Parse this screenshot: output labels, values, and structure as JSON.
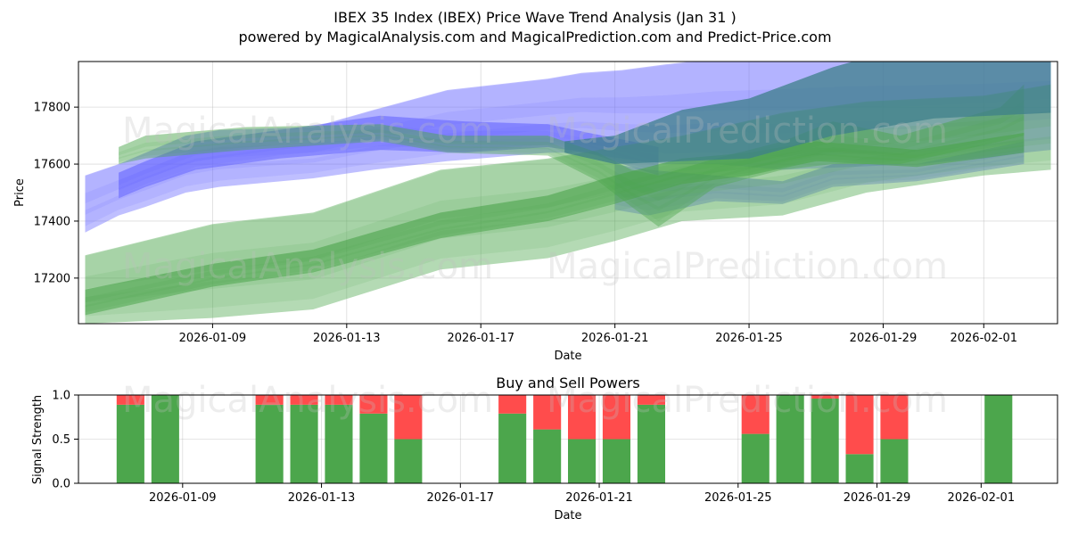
{
  "title": "IBEX 35 Index (IBEX) Price Wave Trend Analysis (Jan 31 )",
  "subtitle": "powered by MagicalAnalysis.com and MagicalPrediction.com and Predict-Price.com",
  "watermarks": [
    "MagicalAnalysis.com",
    "MagicalPrediction.com"
  ],
  "colors": {
    "blue_band": "#6666ff",
    "green_band": "#4ca64c",
    "teal_band": "#3d7f8a",
    "buy": "#4ca64c",
    "sell": "#ff4c4c"
  },
  "chart_data": [
    {
      "type": "area",
      "title": "",
      "xlabel": "Date",
      "ylabel": "Price",
      "x_tick_labels": [
        "2026-01-09",
        "2026-01-13",
        "2026-01-17",
        "2026-01-21",
        "2026-01-25",
        "2026-01-29",
        "2026-02-01"
      ],
      "x_tick_days": [
        9,
        13,
        17,
        21,
        25,
        29,
        32
      ],
      "xlim_days": [
        5.0,
        34.2
      ],
      "y_tick_labels": [
        "17200",
        "17400",
        "17600",
        "17800"
      ],
      "ylim": [
        17040,
        17960
      ],
      "series": [
        {
          "name": "blue band upper",
          "color": "blue",
          "x": [
            5.2,
            6.2,
            7.0,
            8.2,
            9.2,
            12.0,
            13.8,
            16.0,
            19.0,
            20.0,
            21.2,
            22.5,
            24.0,
            26.0,
            28.0,
            30.0,
            32.0,
            33.2,
            34.0
          ],
          "upper": [
            17560,
            17600,
            17640,
            17700,
            17720,
            17730,
            17790,
            17860,
            17900,
            17920,
            17930,
            17950,
            17970,
            17990,
            18000,
            18000,
            18000,
            18000,
            18000
          ],
          "lower": [
            17360,
            17420,
            17450,
            17500,
            17520,
            17550,
            17580,
            17610,
            17640,
            17640,
            17620,
            17600,
            17600,
            17580,
            17590,
            17600,
            17620,
            17640,
            17650
          ]
        },
        {
          "name": "blue band core",
          "color": "blue",
          "x": [
            6.2,
            7.0,
            8.5,
            11.0,
            14.0,
            16.5,
            19.0,
            20.2,
            21.5,
            22.3
          ],
          "upper": [
            17570,
            17610,
            17680,
            17720,
            17770,
            17750,
            17740,
            17710,
            17680,
            17660
          ],
          "lower": [
            17480,
            17520,
            17580,
            17620,
            17650,
            17640,
            17660,
            17640,
            17590,
            17560
          ]
        },
        {
          "name": "blue lower channel",
          "color": "blue",
          "x": [
            21.0,
            22.0,
            24.0,
            26.0,
            27.5,
            30.0,
            33.2
          ],
          "upper": [
            17600,
            17580,
            17560,
            17540,
            17600,
            17600,
            17680
          ],
          "lower": [
            17440,
            17420,
            17470,
            17460,
            17520,
            17540,
            17600
          ]
        },
        {
          "name": "green long band",
          "color": "green",
          "x": [
            5.2,
            9.0,
            12.0,
            15.8,
            19.0,
            21.0,
            23.0,
            26.0,
            28.5,
            32.0,
            34.0
          ],
          "upper": [
            17280,
            17390,
            17430,
            17580,
            17620,
            17660,
            17700,
            17780,
            17820,
            17840,
            17880
          ],
          "lower": [
            17040,
            17060,
            17090,
            17230,
            17270,
            17330,
            17400,
            17420,
            17500,
            17560,
            17580
          ]
        },
        {
          "name": "green dark core",
          "color": "green",
          "x": [
            5.2,
            9.0,
            12.0,
            15.8,
            19.0,
            21.0,
            23.0,
            25.0,
            27.0,
            30.0,
            33.2
          ],
          "upper": [
            17160,
            17250,
            17300,
            17430,
            17490,
            17560,
            17620,
            17640,
            17680,
            17650,
            17710
          ],
          "lower": [
            17070,
            17170,
            17220,
            17340,
            17400,
            17460,
            17530,
            17560,
            17610,
            17590,
            17640
          ]
        },
        {
          "name": "green upper band",
          "color": "green",
          "x": [
            6.2,
            7.0,
            10.0,
            14.0,
            16.0,
            19.0,
            20.5,
            21.5,
            22.3,
            24.0,
            26.0,
            27.5,
            29.5,
            32.5,
            33.2
          ],
          "upper": [
            17660,
            17700,
            17730,
            17740,
            17700,
            17700,
            17640,
            17580,
            17560,
            17620,
            17680,
            17750,
            17700,
            17800,
            17880
          ],
          "lower": [
            17600,
            17620,
            17650,
            17680,
            17640,
            17630,
            17540,
            17450,
            17380,
            17520,
            17580,
            17600,
            17600,
            17680,
            17700
          ]
        },
        {
          "name": "teal overlap band",
          "color": "teal",
          "x": [
            19.5,
            21.0,
            23.0,
            25.0,
            27.5,
            29.0,
            30.5,
            34.0
          ],
          "upper": [
            17680,
            17700,
            17790,
            17830,
            17940,
            17990,
            18000,
            18000
          ],
          "lower": [
            17640,
            17600,
            17610,
            17620,
            17700,
            17730,
            17760,
            17780
          ]
        }
      ]
    },
    {
      "type": "bar",
      "title": "Buy and Sell Powers",
      "xlabel": "Date",
      "ylabel": "Signal Strength",
      "x_tick_labels": [
        "2026-01-09",
        "2026-01-13",
        "2026-01-17",
        "2026-01-21",
        "2026-01-25",
        "2026-01-29",
        "2026-02-01"
      ],
      "x_tick_days": [
        9,
        13,
        17,
        21,
        25,
        29,
        32
      ],
      "xlim_days": [
        6.0,
        34.2
      ],
      "y_tick_labels": [
        "0.0",
        "0.5",
        "1.0"
      ],
      "ylim": [
        0,
        1
      ],
      "days": [
        7.5,
        8.5,
        11.5,
        12.5,
        13.5,
        14.5,
        15.5,
        18.5,
        19.5,
        20.5,
        21.5,
        22.5,
        25.5,
        26.5,
        27.5,
        28.5,
        29.5,
        32.5
      ],
      "buy": [
        0.89,
        1.0,
        0.89,
        0.89,
        0.89,
        0.79,
        0.5,
        0.79,
        0.61,
        0.5,
        0.5,
        0.89,
        0.56,
        1.0,
        0.96,
        0.33,
        0.5,
        1.0
      ],
      "sell": [
        0.11,
        0.0,
        0.11,
        0.11,
        0.11,
        0.21,
        0.5,
        0.21,
        0.39,
        0.5,
        0.5,
        0.11,
        0.44,
        0.0,
        0.04,
        0.67,
        0.5,
        0.0
      ]
    }
  ]
}
